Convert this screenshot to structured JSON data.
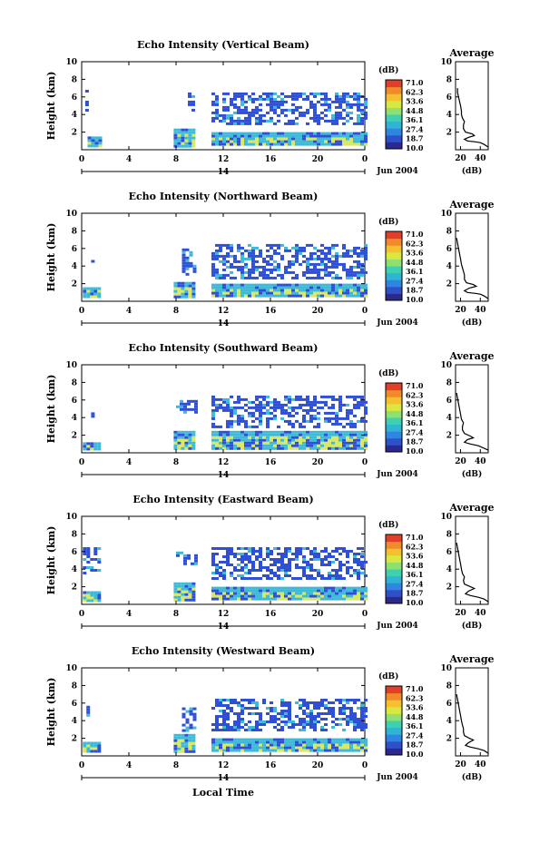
{
  "local_time_label": "Local Time",
  "date_label": "Jun 2004",
  "colors": {
    "colorbar": [
      "#2b2a8c",
      "#2f50c8",
      "#2f86e0",
      "#2fb4d4",
      "#3fd0b0",
      "#8ee070",
      "#d8e840",
      "#f4c030",
      "#f08a2a",
      "#e0402a"
    ],
    "echo_low": "#2f4fd6",
    "echo_mid": "#3fb9d8",
    "echo_high": "#d8e860"
  },
  "chart_data": [
    {
      "type": "heatmap",
      "title": "Echo Intensity (Vertical Beam)",
      "ylabel": "Height (km)",
      "y_ticks": [
        "2",
        "4",
        "6",
        "8",
        "10"
      ],
      "x_ticks": [
        "0",
        "4",
        "8",
        "12",
        "16",
        "20",
        "0"
      ],
      "x_day_label": "14",
      "colorbar": {
        "label": "(dB)",
        "values": [
          "71.0",
          "62.3",
          "53.6",
          "44.8",
          "36.1",
          "27.4",
          "18.7",
          "10.0"
        ]
      },
      "average": {
        "title": "Average",
        "xlabel": "(dB)",
        "x_ticks": [
          "20",
          "40"
        ],
        "xlim": [
          15,
          48
        ],
        "ylim": [
          0,
          10
        ],
        "profile": [
          [
            48,
            0.3
          ],
          [
            44,
            0.6
          ],
          [
            40,
            0.8
          ],
          [
            35,
            0.9
          ],
          [
            27,
            1.0
          ],
          [
            24,
            1.2
          ],
          [
            28,
            1.4
          ],
          [
            34,
            1.6
          ],
          [
            32,
            1.8
          ],
          [
            25,
            2.0
          ],
          [
            23,
            2.4
          ],
          [
            23,
            2.8
          ],
          [
            24,
            3.2
          ],
          [
            22,
            3.6
          ],
          [
            21,
            4.0
          ],
          [
            21,
            4.4
          ],
          [
            20,
            5.0
          ],
          [
            19,
            5.5
          ],
          [
            18,
            6.0
          ],
          [
            17,
            6.5
          ],
          [
            17,
            7.0
          ]
        ]
      },
      "echo_regions": [
        [
          0.5,
          1.6,
          0.5,
          1.2
        ],
        [
          0.5,
          1.6,
          1.2,
          1.5
        ],
        [
          0.3,
          0.6,
          4.5,
          6.8
        ],
        [
          7.8,
          9.6,
          0.5,
          2.4
        ],
        [
          9.0,
          9.4,
          4.5,
          6.5
        ],
        [
          11.0,
          24.0,
          0.5,
          2.0
        ],
        [
          11.0,
          24.0,
          3.0,
          6.5
        ]
      ]
    },
    {
      "type": "heatmap",
      "title": "Echo Intensity (Northward Beam)",
      "ylabel": "Height (km)",
      "y_ticks": [
        "2",
        "4",
        "6",
        "8",
        "10"
      ],
      "x_ticks": [
        "0",
        "4",
        "8",
        "12",
        "16",
        "20",
        "0"
      ],
      "x_day_label": "14",
      "colorbar": {
        "label": "(dB)",
        "values": [
          "71.0",
          "62.3",
          "53.6",
          "44.8",
          "36.1",
          "27.4",
          "18.7",
          "10.0"
        ]
      },
      "average": {
        "title": "Average",
        "xlabel": "(dB)",
        "x_ticks": [
          "20",
          "40"
        ],
        "xlim": [
          15,
          48
        ],
        "ylim": [
          0,
          10
        ],
        "profile": [
          [
            48,
            0.3
          ],
          [
            44,
            0.6
          ],
          [
            40,
            0.8
          ],
          [
            35,
            0.9
          ],
          [
            27,
            1.0
          ],
          [
            24,
            1.2
          ],
          [
            29,
            1.5
          ],
          [
            36,
            1.7
          ],
          [
            33,
            1.9
          ],
          [
            26,
            2.1
          ],
          [
            24,
            2.5
          ],
          [
            24,
            3.0
          ],
          [
            23,
            3.4
          ],
          [
            22,
            3.8
          ],
          [
            21,
            4.2
          ],
          [
            20,
            4.8
          ],
          [
            19,
            5.4
          ],
          [
            18,
            6.0
          ],
          [
            17,
            6.6
          ],
          [
            16,
            7.2
          ]
        ]
      },
      "echo_regions": [
        [
          0.1,
          1.6,
          0.5,
          1.6
        ],
        [
          0.8,
          1.1,
          4.0,
          5.0
        ],
        [
          7.8,
          9.6,
          0.5,
          2.2
        ],
        [
          8.5,
          9.6,
          3.0,
          6.0
        ],
        [
          11.0,
          24.0,
          0.5,
          2.0
        ],
        [
          11.0,
          24.0,
          2.5,
          6.5
        ]
      ]
    },
    {
      "type": "heatmap",
      "title": "Echo Intensity (Southward Beam)",
      "ylabel": "Height (km)",
      "y_ticks": [
        "2",
        "4",
        "6",
        "8",
        "10"
      ],
      "x_ticks": [
        "0",
        "4",
        "8",
        "12",
        "16",
        "20",
        "0"
      ],
      "x_day_label": "14",
      "colorbar": {
        "label": "(dB)",
        "values": [
          "71.0",
          "62.3",
          "53.6",
          "44.8",
          "36.1",
          "27.4",
          "18.7",
          "10.0"
        ]
      },
      "average": {
        "title": "Average",
        "xlabel": "(dB)",
        "x_ticks": [
          "20",
          "40"
        ],
        "xlim": [
          15,
          48
        ],
        "ylim": [
          0,
          10
        ],
        "profile": [
          [
            48,
            0.3
          ],
          [
            44,
            0.5
          ],
          [
            38,
            0.8
          ],
          [
            30,
            1.0
          ],
          [
            24,
            1.2
          ],
          [
            27,
            1.5
          ],
          [
            33,
            1.7
          ],
          [
            30,
            1.9
          ],
          [
            24,
            2.2
          ],
          [
            22,
            2.6
          ],
          [
            22,
            3.0
          ],
          [
            23,
            3.4
          ],
          [
            21,
            3.8
          ],
          [
            20,
            4.4
          ],
          [
            19,
            5.0
          ],
          [
            18,
            5.6
          ],
          [
            17,
            6.2
          ],
          [
            16,
            6.8
          ]
        ]
      },
      "echo_regions": [
        [
          0.1,
          1.6,
          0.3,
          1.2
        ],
        [
          0.8,
          1.1,
          4.0,
          4.6
        ],
        [
          7.8,
          9.6,
          0.5,
          2.5
        ],
        [
          8.0,
          9.6,
          4.5,
          6.0
        ],
        [
          11.0,
          24.0,
          0.5,
          2.5
        ],
        [
          11.0,
          24.0,
          3.0,
          6.5
        ]
      ]
    },
    {
      "type": "heatmap",
      "title": "Echo Intensity (Eastward Beam)",
      "ylabel": "Height (km)",
      "y_ticks": [
        "2",
        "4",
        "6",
        "8",
        "10"
      ],
      "x_ticks": [
        "0",
        "4",
        "8",
        "12",
        "16",
        "20",
        "0"
      ],
      "x_day_label": "14",
      "colorbar": {
        "label": "(dB)",
        "values": [
          "71.0",
          "62.3",
          "53.6",
          "44.8",
          "36.1",
          "27.4",
          "18.7",
          "10.0"
        ]
      },
      "average": {
        "title": "Average",
        "xlabel": "(dB)",
        "x_ticks": [
          "20",
          "40"
        ],
        "xlim": [
          15,
          48
        ],
        "ylim": [
          0,
          10
        ],
        "profile": [
          [
            48,
            0.3
          ],
          [
            44,
            0.6
          ],
          [
            38,
            0.8
          ],
          [
            30,
            1.0
          ],
          [
            25,
            1.2
          ],
          [
            28,
            1.5
          ],
          [
            34,
            1.8
          ],
          [
            30,
            2.0
          ],
          [
            24,
            2.3
          ],
          [
            23,
            2.7
          ],
          [
            24,
            3.1
          ],
          [
            22,
            3.5
          ],
          [
            21,
            4.0
          ],
          [
            20,
            4.6
          ],
          [
            19,
            5.2
          ],
          [
            18,
            5.8
          ],
          [
            17,
            6.4
          ],
          [
            16,
            7.0
          ]
        ]
      },
      "echo_regions": [
        [
          0.1,
          1.6,
          0.5,
          1.5
        ],
        [
          0.1,
          1.6,
          3.5,
          6.5
        ],
        [
          7.8,
          9.6,
          0.5,
          2.5
        ],
        [
          8.0,
          9.6,
          4.5,
          6.0
        ],
        [
          11.0,
          24.0,
          0.5,
          2.0
        ],
        [
          11.0,
          24.0,
          3.0,
          6.5
        ]
      ]
    },
    {
      "type": "heatmap",
      "title": "Echo Intensity (Westward Beam)",
      "ylabel": "Height (km)",
      "y_ticks": [
        "2",
        "4",
        "6",
        "8",
        "10"
      ],
      "x_ticks": [
        "0",
        "4",
        "8",
        "12",
        "16",
        "20",
        "0"
      ],
      "x_day_label": "14",
      "colorbar": {
        "label": "(dB)",
        "values": [
          "71.0",
          "62.3",
          "53.6",
          "44.8",
          "36.1",
          "27.4",
          "18.7",
          "10.0"
        ]
      },
      "average": {
        "title": "Average",
        "xlabel": "(dB)",
        "x_ticks": [
          "20",
          "40"
        ],
        "xlim": [
          15,
          48
        ],
        "ylim": [
          0,
          10
        ],
        "profile": [
          [
            48,
            0.3
          ],
          [
            44,
            0.6
          ],
          [
            38,
            0.8
          ],
          [
            30,
            1.0
          ],
          [
            25,
            1.2
          ],
          [
            28,
            1.5
          ],
          [
            33,
            1.8
          ],
          [
            29,
            2.0
          ],
          [
            24,
            2.3
          ],
          [
            23,
            2.7
          ],
          [
            23,
            3.1
          ],
          [
            22,
            3.5
          ],
          [
            21,
            4.0
          ],
          [
            20,
            4.6
          ],
          [
            19,
            5.2
          ],
          [
            18,
            5.8
          ],
          [
            17,
            6.4
          ],
          [
            16,
            7.0
          ]
        ]
      },
      "echo_regions": [
        [
          0.1,
          1.6,
          0.5,
          1.6
        ],
        [
          0.4,
          0.7,
          4.5,
          6.0
        ],
        [
          7.8,
          9.6,
          0.5,
          2.5
        ],
        [
          8.5,
          9.6,
          3.0,
          5.5
        ],
        [
          11.0,
          24.0,
          0.5,
          2.0
        ],
        [
          11.0,
          24.0,
          3.0,
          6.5
        ]
      ]
    }
  ]
}
